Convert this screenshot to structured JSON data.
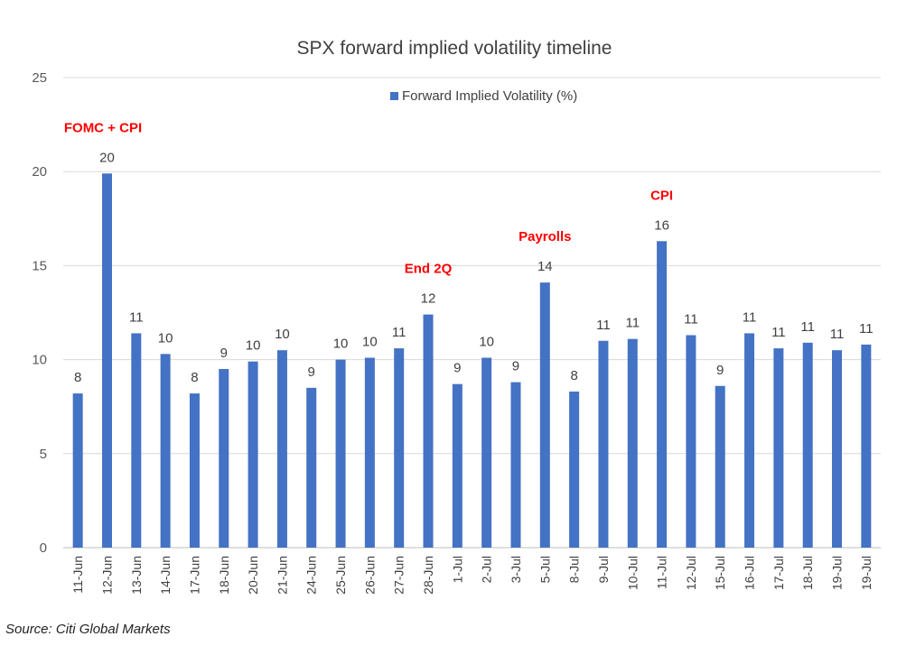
{
  "chart_data": {
    "type": "bar",
    "title": "SPX forward implied volatility timeline",
    "xlabel": "",
    "ylabel": "",
    "ylim": [
      0,
      25
    ],
    "yticks": [
      0,
      5,
      10,
      15,
      20,
      25
    ],
    "grid": true,
    "legend_position": "top",
    "categories": [
      "11-Jun",
      "12-Jun",
      "13-Jun",
      "14-Jun",
      "17-Jun",
      "18-Jun",
      "20-Jun",
      "21-Jun",
      "24-Jun",
      "25-Jun",
      "26-Jun",
      "27-Jun",
      "28-Jun",
      "1-Jul",
      "2-Jul",
      "3-Jul",
      "5-Jul",
      "8-Jul",
      "9-Jul",
      "10-Jul",
      "11-Jul",
      "12-Jul",
      "15-Jul",
      "16-Jul",
      "17-Jul",
      "18-Jul",
      "19-Jul",
      "19-Jul"
    ],
    "series": [
      {
        "name": "Forward Implied Volatility (%)",
        "color": "#4472C4",
        "values": [
          8.2,
          19.9,
          11.4,
          10.3,
          8.2,
          9.5,
          9.9,
          10.5,
          8.5,
          10.0,
          10.1,
          10.6,
          12.4,
          8.7,
          10.1,
          8.8,
          14.1,
          8.3,
          11.0,
          11.1,
          16.3,
          11.3,
          8.6,
          11.4,
          10.6,
          10.9,
          10.5,
          10.8
        ],
        "labels": [
          "8",
          "20",
          "11",
          "10",
          "8",
          "9",
          "10",
          "10",
          "9",
          "10",
          "10",
          "11",
          "12",
          "9",
          "10",
          "9",
          "14",
          "8",
          "11",
          "11",
          "16",
          "11",
          "9",
          "11",
          "11",
          "11",
          "11",
          "11"
        ]
      }
    ],
    "annotations": [
      {
        "text": "FOMC + CPI",
        "index": 1,
        "color": "#FF0000"
      },
      {
        "text": "End 2Q",
        "index": 12,
        "color": "#FF0000"
      },
      {
        "text": "Payrolls",
        "index": 16,
        "color": "#FF0000"
      },
      {
        "text": "CPI",
        "index": 20,
        "color": "#FF0000"
      }
    ]
  },
  "source": "Source: Citi Global Markets"
}
